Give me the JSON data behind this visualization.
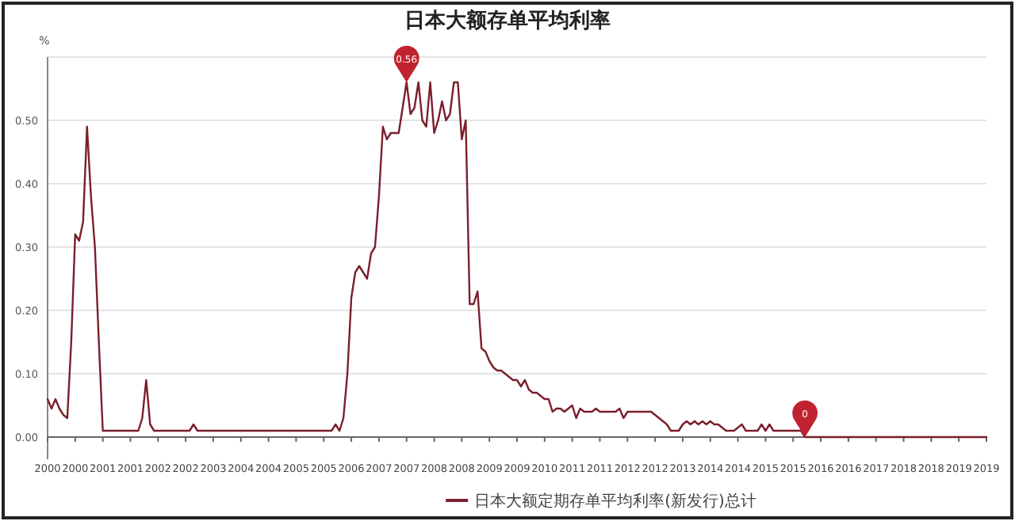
{
  "chart_data": {
    "type": "line",
    "title": "日本大额存单平均利率",
    "ylabel": "%",
    "legend": "bottom",
    "grid": "y",
    "ylim": [
      0,
      0.6
    ],
    "yticks": [
      {
        "value": 0,
        "label": "0.00"
      },
      {
        "value": 0.1,
        "label": "0.10"
      },
      {
        "value": 0.2,
        "label": "0.20"
      },
      {
        "value": 0.3,
        "label": "0.30"
      },
      {
        "value": 0.4,
        "label": "0.40"
      },
      {
        "value": 0.5,
        "label": "0.50"
      },
      {
        "value": 0.6,
        "label": null
      }
    ],
    "categories": [
      "2000",
      null,
      null,
      null,
      null,
      null,
      null,
      "2000",
      null,
      null,
      null,
      null,
      null,
      null,
      "2001",
      null,
      null,
      null,
      null,
      null,
      null,
      "2001",
      null,
      null,
      null,
      null,
      null,
      null,
      "2002",
      null,
      null,
      null,
      null,
      null,
      null,
      "2002",
      null,
      null,
      null,
      null,
      null,
      null,
      "2003",
      null,
      null,
      null,
      null,
      null,
      null,
      "2004",
      null,
      null,
      null,
      null,
      null,
      null,
      "2004",
      null,
      null,
      null,
      null,
      null,
      null,
      "2005",
      null,
      null,
      null,
      null,
      null,
      null,
      "2005",
      null,
      null,
      null,
      null,
      null,
      null,
      "2006",
      null,
      null,
      null,
      null,
      null,
      null,
      "2007",
      null,
      null,
      null,
      null,
      null,
      null,
      "2007",
      null,
      null,
      null,
      null,
      null,
      null,
      "2008",
      null,
      null,
      null,
      null,
      null,
      null,
      "2008",
      null,
      null,
      null,
      null,
      null,
      null,
      "2009",
      null,
      null,
      null,
      null,
      null,
      null,
      "2009",
      null,
      null,
      null,
      null,
      null,
      null,
      "2010",
      null,
      null,
      null,
      null,
      null,
      null,
      "2011",
      null,
      null,
      null,
      null,
      null,
      null,
      "2011",
      null,
      null,
      null,
      null,
      null,
      null,
      "2012",
      null,
      null,
      null,
      null,
      null,
      null,
      "2012",
      null,
      null,
      null,
      null,
      null,
      null,
      "2013",
      null,
      null,
      null,
      null,
      null,
      null,
      "2014",
      null,
      null,
      null,
      null,
      null,
      null,
      "2014",
      null,
      null,
      null,
      null,
      null,
      null,
      "2015",
      null,
      null,
      null,
      null,
      null,
      null,
      "2015",
      null,
      null,
      null,
      null,
      null,
      null,
      "2016",
      null,
      null,
      null,
      null,
      null,
      null,
      "2016",
      null,
      null,
      null,
      null,
      null,
      null,
      "2017",
      null,
      null,
      null,
      null,
      null,
      null,
      "2018",
      null,
      null,
      null,
      null,
      null,
      null,
      "2018",
      null,
      null,
      null,
      null,
      null,
      null,
      "2019",
      null,
      null,
      null,
      null,
      null,
      null,
      "2019"
    ],
    "series": [
      {
        "name": "日本大额定期存单平均利率(新发行)总计",
        "color": "#7a1f2b",
        "values": [
          0.06,
          0.045,
          0.06,
          0.045,
          0.035,
          0.03,
          0.15,
          0.32,
          0.31,
          0.34,
          0.49,
          0.38,
          0.3,
          0.15,
          0.01,
          0.01,
          0.01,
          0.01,
          0.01,
          0.01,
          0.01,
          0.01,
          0.01,
          0.01,
          0.03,
          0.09,
          0.02,
          0.01,
          0.01,
          0.01,
          0.01,
          0.01,
          0.01,
          0.01,
          0.01,
          0.01,
          0.01,
          0.02,
          0.01,
          0.01,
          0.01,
          0.01,
          0.01,
          0.01,
          0.01,
          0.01,
          0.01,
          0.01,
          0.01,
          0.01,
          0.01,
          0.01,
          0.01,
          0.01,
          0.01,
          0.01,
          0.01,
          0.01,
          0.01,
          0.01,
          0.01,
          0.01,
          0.01,
          0.01,
          0.01,
          0.01,
          0.01,
          0.01,
          0.01,
          0.01,
          0.01,
          0.01,
          0.01,
          0.02,
          0.01,
          0.03,
          0.1,
          0.22,
          0.26,
          0.27,
          0.26,
          0.25,
          0.29,
          0.3,
          0.38,
          0.49,
          0.47,
          0.48,
          0.48,
          0.48,
          0.52,
          0.56,
          0.51,
          0.52,
          0.56,
          0.5,
          0.49,
          0.56,
          0.48,
          0.5,
          0.53,
          0.5,
          0.51,
          0.56,
          0.56,
          0.47,
          0.5,
          0.21,
          0.21,
          0.23,
          0.14,
          0.135,
          0.12,
          0.11,
          0.105,
          0.105,
          0.1,
          0.095,
          0.09,
          0.09,
          0.08,
          0.09,
          0.075,
          0.07,
          0.07,
          0.065,
          0.06,
          0.06,
          0.04,
          0.045,
          0.045,
          0.04,
          0.045,
          0.05,
          0.03,
          0.045,
          0.04,
          0.04,
          0.04,
          0.045,
          0.04,
          0.04,
          0.04,
          0.04,
          0.04,
          0.045,
          0.03,
          0.04,
          0.04,
          0.04,
          0.04,
          0.04,
          0.04,
          0.04,
          0.035,
          0.03,
          0.025,
          0.02,
          0.01,
          0.01,
          0.01,
          0.02,
          0.025,
          0.02,
          0.025,
          0.02,
          0.025,
          0.02,
          0.025,
          0.02,
          0.02,
          0.015,
          0.01,
          0.01,
          0.01,
          0.015,
          0.02,
          0.01,
          0.01,
          0.01,
          0.01,
          0.02,
          0.01,
          0.02,
          0.01,
          0.01,
          0.01,
          0.01,
          0.01,
          0.01,
          0.01,
          0.01,
          0,
          0,
          0,
          0,
          0,
          0,
          0,
          0,
          0,
          0,
          0,
          0,
          0,
          0,
          0,
          0,
          0,
          0,
          0,
          0,
          0,
          0,
          0,
          0,
          0,
          0,
          0,
          0,
          0,
          0,
          0,
          0,
          0,
          0,
          0,
          0,
          0,
          0,
          0,
          0,
          0,
          0,
          0,
          0,
          0,
          0,
          0
        ]
      }
    ],
    "annotations": [
      {
        "text": "0.56",
        "y": 0.56
      },
      {
        "text": "0",
        "y": 0
      }
    ]
  }
}
